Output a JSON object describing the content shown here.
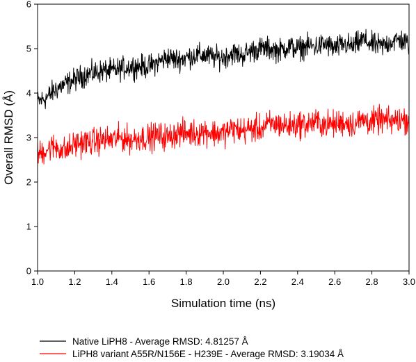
{
  "chart_data": {
    "type": "line",
    "title": "",
    "xlabel": "Simulation time (ns)",
    "ylabel": "Overall RMSD (Å)",
    "xlim": [
      1.0,
      3.0
    ],
    "ylim": [
      0,
      6
    ],
    "x_ticks": [
      "1.0",
      "1.2",
      "1.4",
      "1.6",
      "1.8",
      "2.0",
      "2.2",
      "2.4",
      "2.6",
      "2.8",
      "3.0"
    ],
    "y_ticks": [
      "0",
      "1",
      "2",
      "3",
      "4",
      "5",
      "6"
    ],
    "grid": false,
    "legend_position": "bottom",
    "series": [
      {
        "name": "Native LiPH8 - Average RMSD: 4.81257 Å",
        "color": "#000000",
        "x": [
          1.0,
          1.05,
          1.1,
          1.15,
          1.2,
          1.25,
          1.3,
          1.35,
          1.4,
          1.45,
          1.5,
          1.55,
          1.6,
          1.65,
          1.7,
          1.75,
          1.8,
          1.85,
          1.9,
          1.95,
          2.0,
          2.05,
          2.1,
          2.15,
          2.2,
          2.25,
          2.3,
          2.35,
          2.4,
          2.45,
          2.5,
          2.55,
          2.6,
          2.65,
          2.7,
          2.75,
          2.8,
          2.85,
          2.9,
          2.95,
          3.0
        ],
        "y": [
          3.8,
          3.9,
          4.1,
          4.2,
          4.3,
          4.4,
          4.45,
          4.5,
          4.5,
          4.55,
          4.6,
          4.6,
          4.6,
          4.7,
          4.8,
          4.75,
          4.8,
          4.85,
          4.85,
          4.8,
          4.8,
          4.9,
          4.85,
          4.95,
          5.0,
          5.0,
          4.95,
          5.05,
          5.0,
          5.05,
          5.05,
          5.1,
          5.0,
          5.1,
          5.05,
          5.2,
          5.1,
          5.05,
          5.15,
          5.2,
          5.1
        ]
      },
      {
        "name": "LiPH8 variant A55R/N156E - H239E - Average RMSD: 3.19034 Å",
        "color": "#ff0000",
        "x": [
          1.0,
          1.05,
          1.1,
          1.15,
          1.2,
          1.25,
          1.3,
          1.35,
          1.4,
          1.45,
          1.5,
          1.55,
          1.6,
          1.65,
          1.7,
          1.75,
          1.8,
          1.85,
          1.9,
          1.95,
          2.0,
          2.05,
          2.1,
          2.15,
          2.2,
          2.25,
          2.3,
          2.35,
          2.4,
          2.45,
          2.5,
          2.55,
          2.6,
          2.65,
          2.7,
          2.75,
          2.8,
          2.85,
          2.9,
          2.95,
          3.0
        ],
        "y": [
          2.6,
          2.75,
          2.8,
          2.7,
          2.85,
          2.9,
          2.9,
          2.95,
          2.95,
          3.0,
          2.95,
          3.0,
          3.0,
          3.05,
          3.0,
          3.1,
          3.1,
          3.1,
          3.15,
          3.1,
          3.1,
          3.2,
          3.15,
          3.2,
          3.2,
          3.3,
          3.3,
          3.25,
          3.3,
          3.3,
          3.35,
          3.3,
          3.3,
          3.35,
          3.3,
          3.4,
          3.35,
          3.4,
          3.35,
          3.4,
          3.4
        ]
      }
    ]
  }
}
